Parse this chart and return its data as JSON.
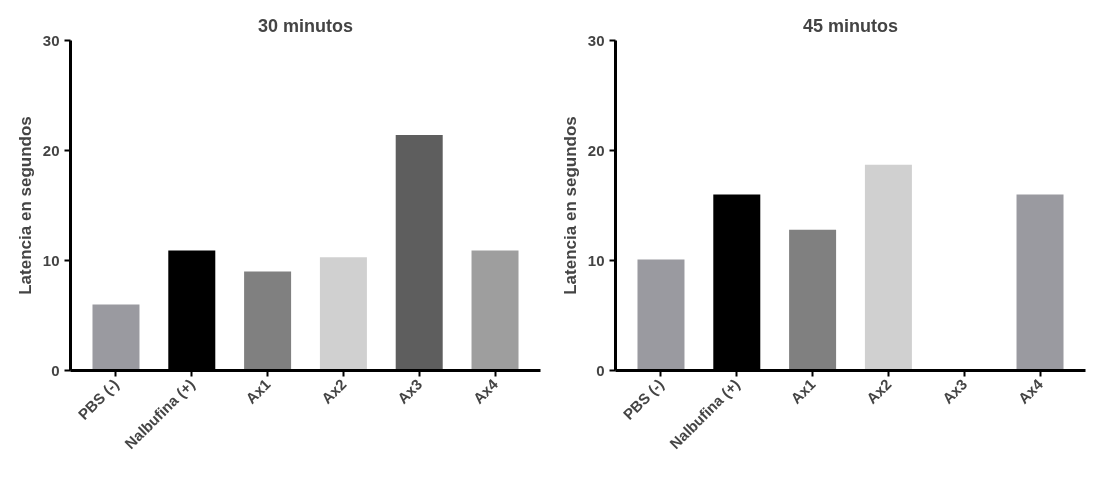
{
  "chart_data": [
    {
      "type": "bar",
      "title": "30 minutos",
      "ylabel": "Latencia en segundos",
      "categories": [
        "PBS (-)",
        "Nalbufina (+)",
        "Ax1",
        "Ax2",
        "Ax3",
        "Ax4"
      ],
      "values": [
        6.0,
        10.9,
        9.0,
        10.3,
        21.4,
        10.9
      ],
      "colors": [
        "#9a9aa0",
        "#000000",
        "#808080",
        "#d0d0d0",
        "#5e5e5e",
        "#9e9e9e"
      ],
      "ylim": [
        0,
        30
      ],
      "yticks": [
        0,
        10,
        20,
        30
      ],
      "grid": false
    },
    {
      "type": "bar",
      "title": "45 minutos",
      "ylabel": "Latencia en segundos",
      "categories": [
        "PBS (-)",
        "Nalbufina (+)",
        "Ax1",
        "Ax2",
        "Ax3",
        "Ax4"
      ],
      "values": [
        10.1,
        16.0,
        12.8,
        18.7,
        0,
        16.0
      ],
      "colors": [
        "#9a9aa0",
        "#000000",
        "#808080",
        "#d0d0d0",
        "#5e5e5e",
        "#9a9aa0"
      ],
      "ylim": [
        0,
        30
      ],
      "yticks": [
        0,
        10,
        20,
        30
      ],
      "grid": false
    }
  ]
}
